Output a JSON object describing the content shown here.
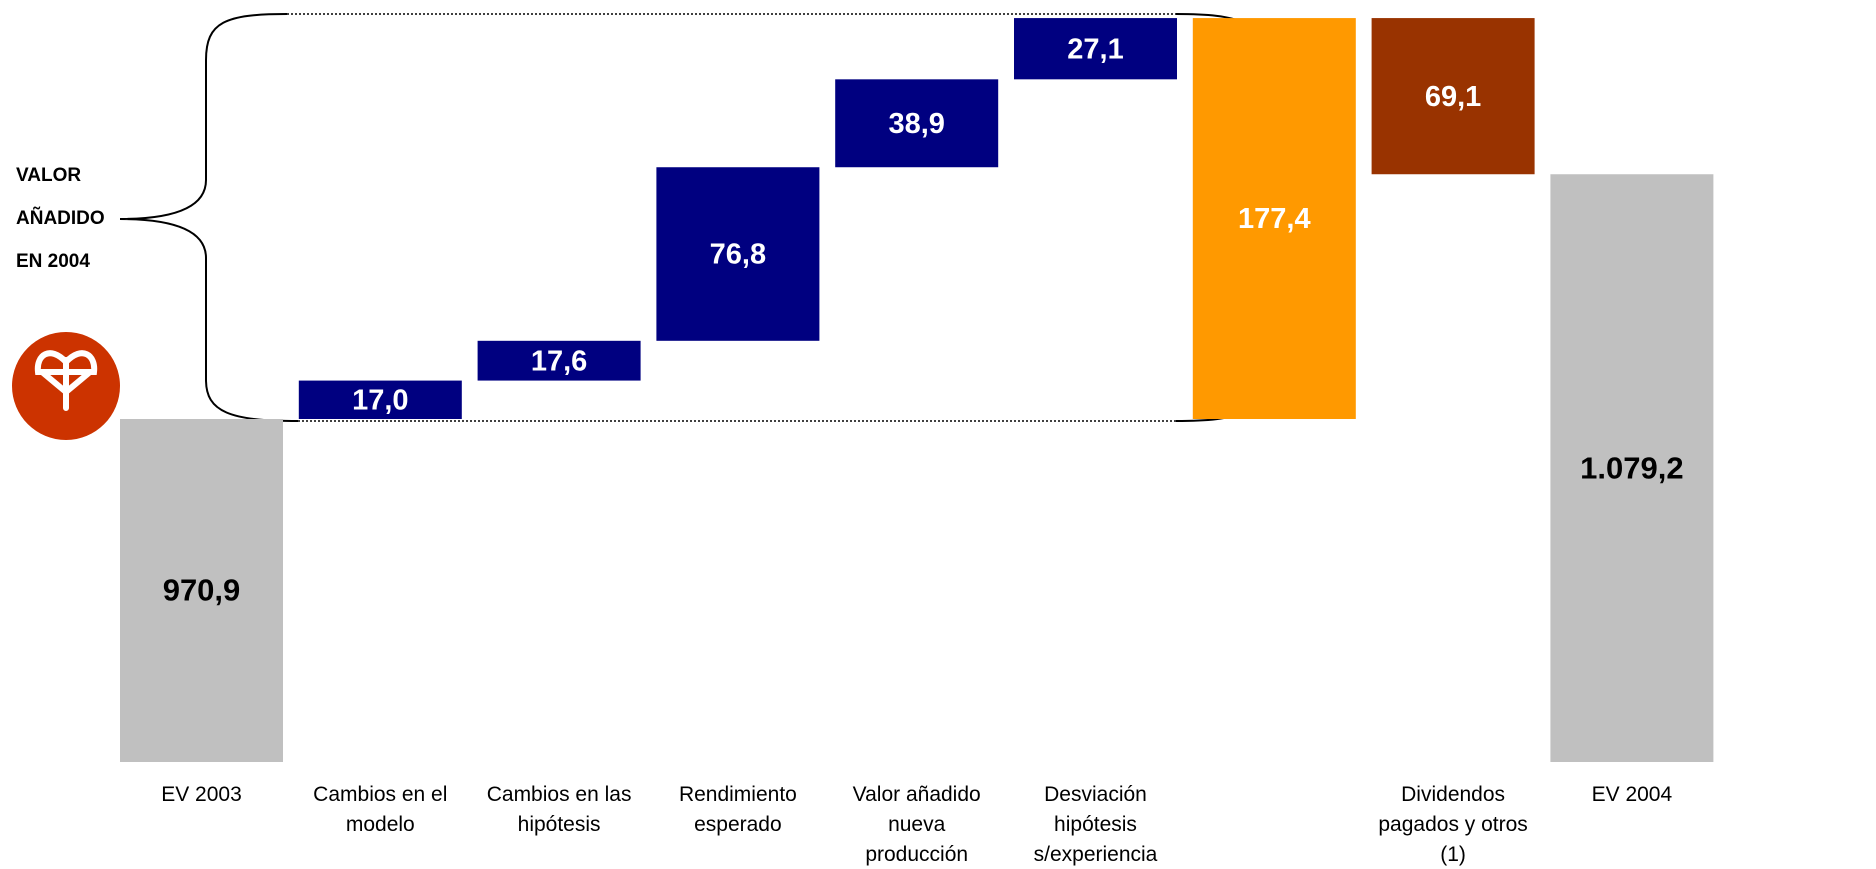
{
  "chart_data": {
    "type": "waterfall",
    "annotation": [
      "VALOR",
      "AÑADIDO",
      "EN 2004"
    ],
    "categories": [
      "EV 2003",
      "Cambios en el modelo",
      "Cambios en las hipótesis",
      "Rendimiento esperado",
      "Valor añadido nueva producción",
      "Desviación hipótesis s/experiencia",
      null,
      "Dividendos pagados y otros (1)",
      "EV 2004"
    ],
    "measure": [
      "absolute",
      "increase",
      "increase",
      "increase",
      "increase",
      "increase",
      "subtotal",
      "decrease",
      "total"
    ],
    "values": [
      970.9,
      17.0,
      17.6,
      76.8,
      38.9,
      27.1,
      177.4,
      69.1,
      1079.2
    ],
    "value_labels": [
      "970,9",
      "17,0",
      "17,6",
      "76,8",
      "38,9",
      "27,1",
      "177,4",
      "69,1",
      "1.079,2"
    ],
    "colors": [
      "#c0c0c0",
      "#000080",
      "#000080",
      "#000080",
      "#000080",
      "#000080",
      "#ff9900",
      "#993300",
      "#c0c0c0"
    ],
    "label_colors": [
      "#000000",
      "#ffffff",
      "#ffffff",
      "#ffffff",
      "#ffffff",
      "#ffffff",
      "#ffffff",
      "#ffffff",
      "#000000"
    ]
  }
}
